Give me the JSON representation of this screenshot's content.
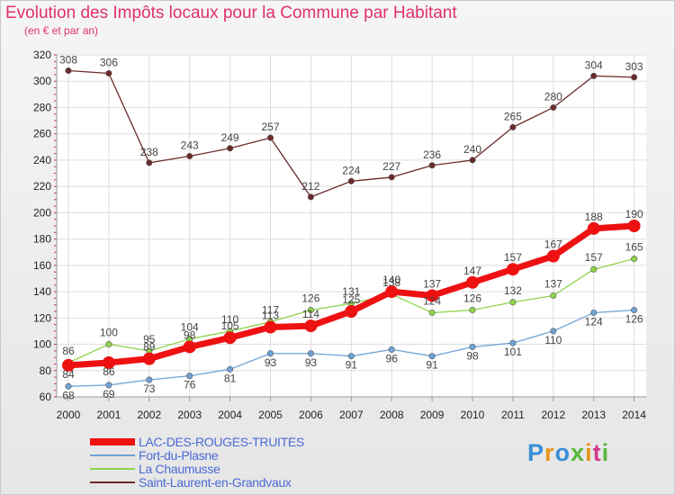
{
  "title": "Evolution des Impôts locaux pour la Commune par Habitant",
  "subtitle": "(en € et par an)",
  "logo_text": "Proxiti",
  "chart_data": {
    "type": "line",
    "title": "Evolution des Impôts locaux pour la Commune par Habitant",
    "ylabel": "(en € et par an)",
    "xlabel": "",
    "ylim": [
      60,
      320
    ],
    "yticks": [
      60,
      80,
      100,
      120,
      140,
      160,
      180,
      200,
      220,
      240,
      260,
      280,
      300,
      320
    ],
    "grid": true,
    "categories": [
      "2000",
      "2001",
      "2002",
      "2003",
      "2004",
      "2005",
      "2006",
      "2007",
      "2008",
      "2009",
      "2010",
      "2011",
      "2012",
      "2013",
      "2014"
    ],
    "series": [
      {
        "name": "LAC-DES-ROUGES-TRUITES",
        "color": "#ee1111",
        "values": [
          84,
          86,
          89,
          98,
          105,
          113,
          114,
          125,
          140,
          137,
          147,
          157,
          167,
          188,
          190
        ]
      },
      {
        "name": "Fort-du-Plasne",
        "color": "#6fa3d6",
        "values": [
          68,
          69,
          73,
          76,
          81,
          93,
          93,
          91,
          96,
          91,
          98,
          101,
          110,
          124,
          126
        ]
      },
      {
        "name": "La Chaumusse",
        "color": "#8fd44a",
        "values": [
          86,
          100,
          95,
          104,
          110,
          117,
          126,
          131,
          138,
          124,
          126,
          132,
          137,
          157,
          165
        ]
      },
      {
        "name": "Saint-Laurent-en-Grandvaux",
        "color": "#6b2a2a",
        "values": [
          308,
          306,
          238,
          243,
          249,
          257,
          212,
          224,
          227,
          236,
          240,
          265,
          280,
          304,
          303
        ]
      }
    ]
  }
}
